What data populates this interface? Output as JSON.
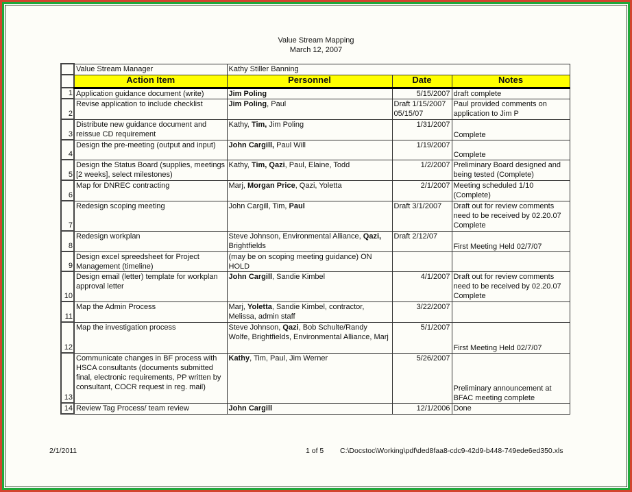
{
  "header": {
    "title": "Value Stream Mapping",
    "date": "March 12, 2007"
  },
  "manager": {
    "label": "Value Stream Manager",
    "name": "Kathy Stiller Banning"
  },
  "columns": [
    "Action Item",
    "Personnel",
    "Date",
    "Notes"
  ],
  "rows": [
    {
      "num": "1",
      "action": "Application guidance document (write)",
      "personnel": [
        {
          "t": "Jim Poling",
          "b": true
        }
      ],
      "date": "5/15/2007",
      "notes": "draft complete"
    },
    {
      "num": "2",
      "action": "Revise application to include checklist",
      "personnel": [
        {
          "t": "Jim Poling",
          "b": true
        },
        {
          "t": ", Paul"
        }
      ],
      "date": "Draft 1/15/2007 05/15/07",
      "notes": "Paul provided comments on application to Jim P"
    },
    {
      "num": "3",
      "action": "Distribute new guidance document and reissue CD requirement",
      "personnel": [
        {
          "t": "Kathy, "
        },
        {
          "t": "Tim,",
          "b": true
        },
        {
          "t": " Jim Poling"
        }
      ],
      "date": "1/31/2007",
      "notes": "Complete"
    },
    {
      "num": "4",
      "action": "Design the pre-meeting (output and input)",
      "personnel": [
        {
          "t": "John Cargill,",
          "b": true
        },
        {
          "t": " Paul Will"
        }
      ],
      "date": "1/19/2007",
      "notes": "Complete"
    },
    {
      "num": "5",
      "action": "Design the Status Board (supplies, meetings [2 weeks], select milestones)",
      "personnel": [
        {
          "t": "Kathy, "
        },
        {
          "t": "Tim, Qazi",
          "b": true
        },
        {
          "t": ", Paul, Elaine, Todd"
        }
      ],
      "date": "1/2/2007",
      "notes": "Preliminary Board designed and being tested (Complete)"
    },
    {
      "num": "6",
      "action": "Map for DNREC contracting",
      "personnel": [
        {
          "t": "Marj, "
        },
        {
          "t": "Morgan Price",
          "b": true
        },
        {
          "t": ", Qazi, Yoletta"
        }
      ],
      "date": "2/1/2007",
      "notes": "Meeting scheduled 1/10 (Complete)"
    },
    {
      "num": "7",
      "action": "Redesign scoping meeting",
      "personnel": [
        {
          "t": "John Cargill, Tim, "
        },
        {
          "t": "Paul",
          "b": true
        }
      ],
      "date": "Draft 3/1/2007",
      "notes": "Draft out for review comments need to be received by 02.20.07 Complete"
    },
    {
      "num": "8",
      "action": "Redesign workplan",
      "personnel": [
        {
          "t": "Steve Johnson, Environmental Alliance, "
        },
        {
          "t": "Qazi,",
          "b": true
        },
        {
          "t": " Brightfields"
        }
      ],
      "date": "Draft 2/12/07",
      "notes": "First Meeting Held 02/7/07"
    },
    {
      "num": "9",
      "action": "Design excel spreedsheet for Project Management (timeline)",
      "personnel": [
        {
          "t": "(may be on scoping meeting guidance) ON HOLD"
        }
      ],
      "date": "",
      "notes": ""
    },
    {
      "num": "10",
      "action": "Design email (letter) template for workplan approval letter",
      "personnel": [
        {
          "t": "John Cargill",
          "b": true
        },
        {
          "t": ", Sandie Kimbel"
        }
      ],
      "date": "4/1/2007",
      "notes": "Draft out for review comments need to be received by 02.20.07 Complete"
    },
    {
      "num": "11",
      "action": "Map the Admin Process",
      "personnel": [
        {
          "t": "Marj, "
        },
        {
          "t": "Yoletta",
          "b": true
        },
        {
          "t": ", Sandie Kimbel, contractor, Melissa, admin staff"
        }
      ],
      "date": "3/22/2007",
      "notes": ""
    },
    {
      "num": "12",
      "action": "Map the investigation process",
      "personnel": [
        {
          "t": "Steve Johnson, "
        },
        {
          "t": "Qazi",
          "b": true
        },
        {
          "t": ", Bob Schulte/Randy Wolfe, Brightfields, Environmental Alliance, Marj"
        }
      ],
      "date": "5/1/2007",
      "notes": "First Meeting Held 02/7/07"
    },
    {
      "num": "13",
      "action": "Communicate changes in BF process with HSCA consultants (documents submitted final, electronic requirements, PP written by consultant, COCR request in reg. mail)",
      "personnel": [
        {
          "t": "Kathy",
          "b": true
        },
        {
          "t": ", Tim, Paul, Jim Werner"
        }
      ],
      "date": "5/26/2007",
      "notes": "Preliminary announcement at BFAC meeting complete"
    },
    {
      "num": "14",
      "action": "Review Tag Process/ team review",
      "personnel": [
        {
          "t": "John Cargill",
          "b": true
        }
      ],
      "date": "12/1/2006",
      "notes": "Done"
    }
  ],
  "footer": {
    "date": "2/1/2011",
    "page": "1 of 5",
    "path": "C:\\Docstoc\\Working\\pdf\\ded8faa8-cdc9-42d9-b448-749ede6ed350.xls"
  },
  "colors": {
    "header_fill": "#ffff00",
    "frame_outer": "#d2452e",
    "frame_inner": "#1fa83a"
  }
}
